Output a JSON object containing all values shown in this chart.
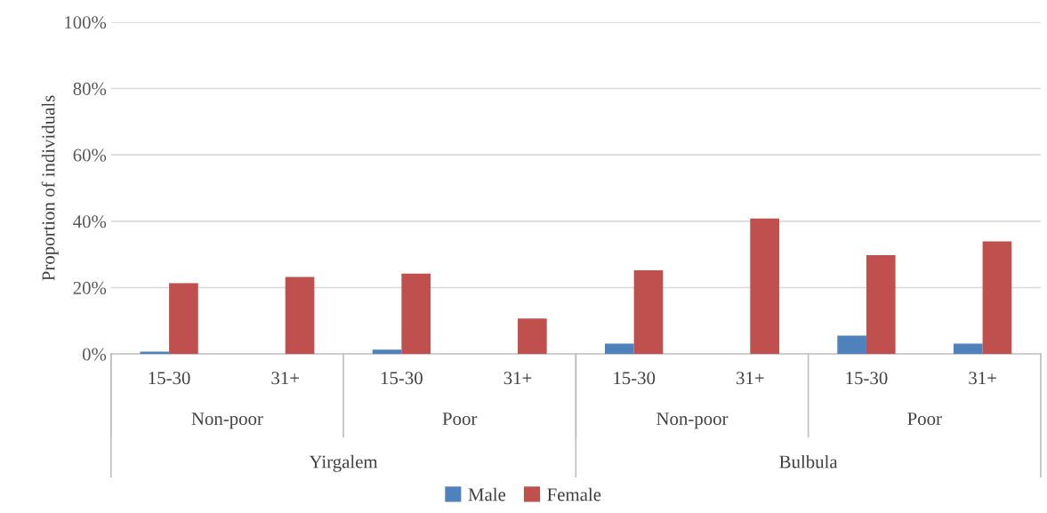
{
  "chart_data": {
    "type": "bar",
    "ylabel": "Proportion of individuals",
    "categories": [
      "15-30",
      "31+",
      "15-30",
      "31+",
      "15-30",
      "31+",
      "15-30",
      "31+"
    ],
    "series": [
      {
        "name": "Male",
        "color": "#4f81bd",
        "values": [
          0.7,
          0,
          1.3,
          0,
          3.1,
          0,
          5.5,
          3.1
        ]
      },
      {
        "name": "Female",
        "color": "#c0504d",
        "values": [
          21.3,
          23.2,
          24.2,
          10.7,
          25.2,
          40.8,
          29.8,
          33.9
        ]
      }
    ],
    "ylim": [
      0,
      100
    ],
    "yticks": [
      {
        "value": 0,
        "label": "0%"
      },
      {
        "value": 20,
        "label": "20%"
      },
      {
        "value": 40,
        "label": "40%"
      },
      {
        "value": 60,
        "label": "60%"
      },
      {
        "value": 80,
        "label": "80%"
      },
      {
        "value": 100,
        "label": "100%"
      }
    ],
    "grid": "y",
    "legend": "bottom",
    "annotations": [
      "Non-poor",
      "Poor",
      "Non-poor",
      "Poor",
      "Yirgalem",
      "Bulbula"
    ]
  }
}
